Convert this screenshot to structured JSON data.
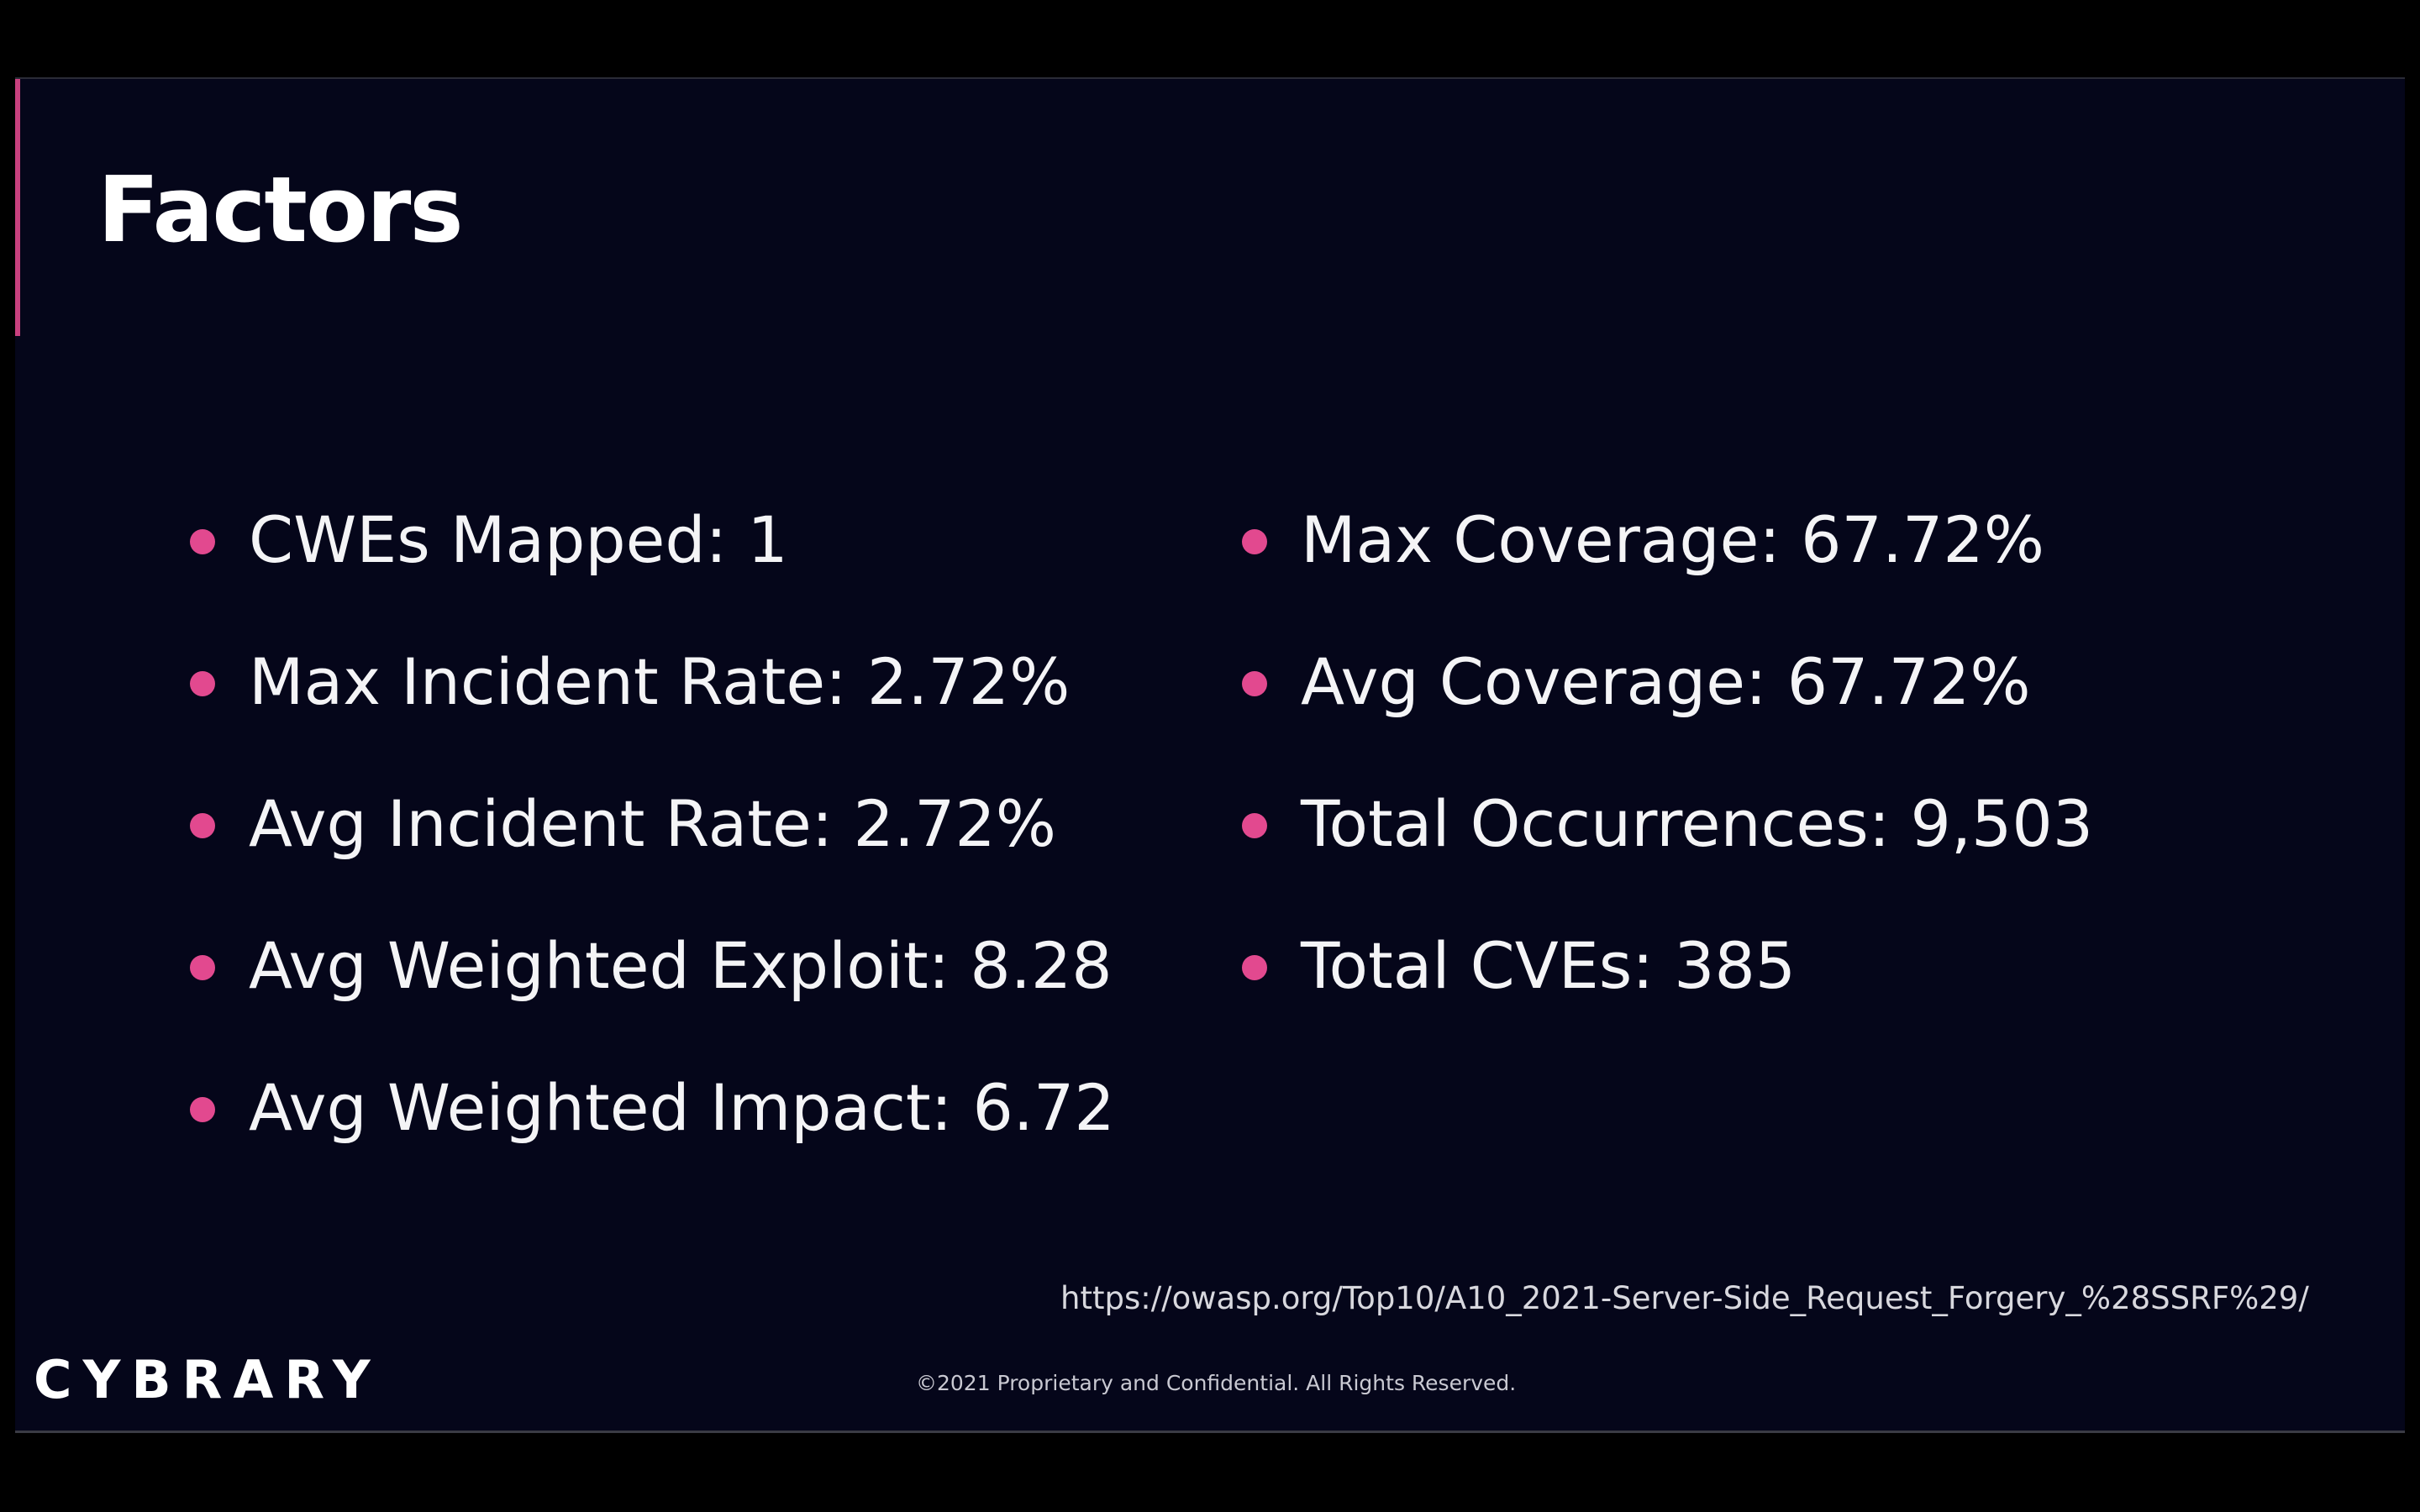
{
  "slide": {
    "title": "Factors",
    "left_items": [
      {
        "text": "CWEs Mapped: 1"
      },
      {
        "text": "Max Incident Rate: 2.72%"
      },
      {
        "text": "Avg Incident Rate: 2.72%"
      },
      {
        "text": "Avg Weighted Exploit: 8.28"
      },
      {
        "text": "Avg Weighted Impact: 6.72"
      }
    ],
    "right_items": [
      {
        "text": "Max Coverage: 67.72%"
      },
      {
        "text": "Avg Coverage: 67.72%"
      },
      {
        "text": "Total Occurrences: 9,503"
      },
      {
        "text": "Total CVEs: 385"
      }
    ],
    "source_url": "https://owasp.org/Top10/A10_2021-Server-Side_Request_Forgery_%28SSRF%29/",
    "logo_text": "CYBRARY",
    "copyright": "©2021 Proprietary and Confidential. All Rights Reserved."
  },
  "colors": {
    "background": "#05061a",
    "accent": "#c8407e",
    "bullet": "#e2498f",
    "text": "#ffffff"
  }
}
